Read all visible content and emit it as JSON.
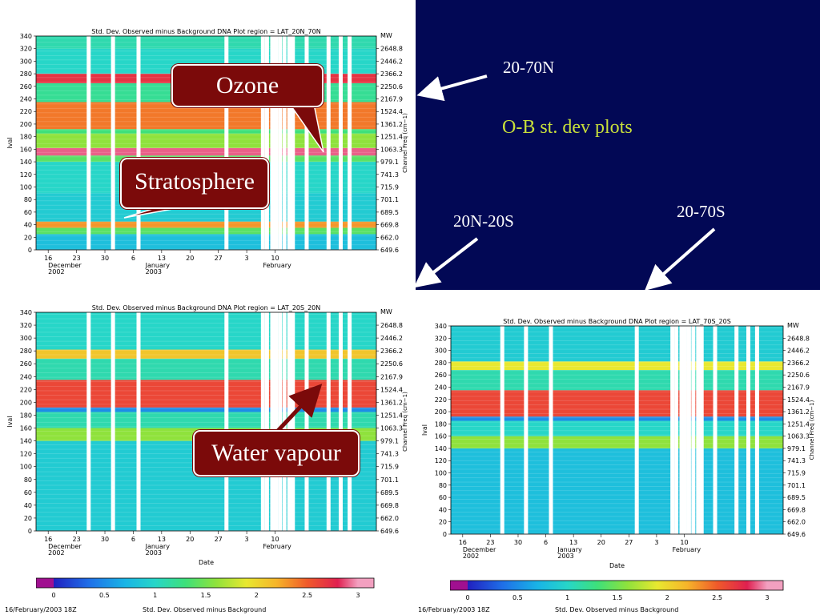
{
  "slide": {
    "title": "O-B st. dev plots",
    "labels": {
      "n": "20-70N",
      "eq": "20N-20S",
      "s": "20-70S"
    },
    "callouts": {
      "ozone": "Ozone",
      "strat": "Stratosphere",
      "wv": "Water vapour"
    },
    "colors": {
      "background": "#020855",
      "title": "#c8e03a",
      "callout": "#7b0a0a"
    }
  },
  "chart_data": [
    {
      "type": "heatmap",
      "title": "Std. Dev. Observed minus Background DNA Plot   region = LAT_20N_70N",
      "ylabel": "lval",
      "y2label": "Channel Freq (cm−1)",
      "y2unit": "MW",
      "xlabel": "",
      "ylim": [
        0,
        340
      ],
      "yticks": [
        0,
        20,
        40,
        60,
        80,
        100,
        120,
        140,
        160,
        180,
        200,
        220,
        240,
        260,
        280,
        300,
        320,
        340
      ],
      "y2ticks": [
        "649.6",
        "662.0",
        "669.8",
        "689.5",
        "701.1",
        "715.9",
        "741.3",
        "979.1",
        "1063.3",
        "1251.4",
        "1361.2",
        "1524.4",
        "2167.9",
        "2250.6",
        "2366.2",
        "2446.2",
        "2648.8"
      ],
      "xticks": [
        "16",
        "23",
        "30",
        "6",
        "13",
        "20",
        "27",
        "3",
        "10"
      ],
      "month_labels": [
        {
          "m": "December",
          "y": "2002"
        },
        {
          "m": "January",
          "y": "2003"
        },
        {
          "m": "February",
          "y": ""
        }
      ],
      "bands": [
        {
          "lo": 0,
          "hi": 25,
          "v": 0.8
        },
        {
          "lo": 25,
          "hi": 35,
          "v": 1.4
        },
        {
          "lo": 35,
          "hi": 45,
          "v": 2.3
        },
        {
          "lo": 45,
          "hi": 90,
          "v": 0.9
        },
        {
          "lo": 90,
          "hi": 140,
          "v": 1.0
        },
        {
          "lo": 140,
          "hi": 150,
          "v": 1.4
        },
        {
          "lo": 150,
          "hi": 162,
          "v": 2.9
        },
        {
          "lo": 162,
          "hi": 185,
          "v": 1.6
        },
        {
          "lo": 185,
          "hi": 192,
          "v": 1.3
        },
        {
          "lo": 192,
          "hi": 235,
          "v": 2.4
        },
        {
          "lo": 235,
          "hi": 265,
          "v": 1.2
        },
        {
          "lo": 265,
          "hi": 280,
          "v": 2.7
        },
        {
          "lo": 280,
          "hi": 320,
          "v": 1.0
        },
        {
          "lo": 320,
          "hi": 340,
          "v": 1.1
        }
      ],
      "gaps_days": [
        13,
        19,
        25.3,
        47,
        56,
        57,
        58.3,
        59.2,
        60.2,
        61.3,
        62.5,
        63.4,
        66.8,
        72.2,
        75.2,
        77.4
      ]
    },
    {
      "type": "heatmap",
      "title": "Std. Dev. Observed minus Background DNA Plot   region = LAT_20S_20N",
      "ylabel": "lval",
      "y2label": "Channel Freq (cm−1)",
      "y2unit": "MW",
      "xlabel": "Date",
      "ylim": [
        0,
        340
      ],
      "yticks": [
        0,
        20,
        40,
        60,
        80,
        100,
        120,
        140,
        160,
        180,
        200,
        220,
        240,
        260,
        280,
        300,
        320,
        340
      ],
      "y2ticks": [
        "649.6",
        "662.0",
        "669.8",
        "689.5",
        "701.1",
        "715.9",
        "741.3",
        "979.1",
        "1063.3",
        "1251.4",
        "1361.2",
        "1524.4",
        "2167.9",
        "2250.6",
        "2366.2",
        "2446.2",
        "2648.8"
      ],
      "xticks": [
        "16",
        "23",
        "30",
        "6",
        "13",
        "20",
        "27",
        "3",
        "10"
      ],
      "month_labels": [
        {
          "m": "December",
          "y": "2002"
        },
        {
          "m": "January",
          "y": "2003"
        },
        {
          "m": "February",
          "y": ""
        }
      ],
      "bands": [
        {
          "lo": 0,
          "hi": 140,
          "v": 0.9
        },
        {
          "lo": 140,
          "hi": 160,
          "v": 1.6
        },
        {
          "lo": 160,
          "hi": 185,
          "v": 1.1
        },
        {
          "lo": 185,
          "hi": 192,
          "v": 0.5
        },
        {
          "lo": 192,
          "hi": 235,
          "v": 2.6
        },
        {
          "lo": 235,
          "hi": 268,
          "v": 1.1
        },
        {
          "lo": 268,
          "hi": 282,
          "v": 2.1
        },
        {
          "lo": 282,
          "hi": 340,
          "v": 1.0
        }
      ],
      "gaps_days": [
        13,
        19,
        25.3,
        47,
        56,
        57,
        58.3,
        59.2,
        60.2,
        61.3,
        62.5,
        63.4,
        66.8,
        72.2,
        75.2,
        77.4
      ]
    },
    {
      "type": "heatmap",
      "title": "Std. Dev. Observed minus Background DNA Plot   region = LAT_70S_20S",
      "ylabel": "lval",
      "y2label": "Channel Freq (cm−1)",
      "y2unit": "MW",
      "xlabel": "Date",
      "ylim": [
        0,
        340
      ],
      "yticks": [
        0,
        20,
        40,
        60,
        80,
        100,
        120,
        140,
        160,
        180,
        200,
        220,
        240,
        260,
        280,
        300,
        320,
        340
      ],
      "y2ticks": [
        "649.6",
        "662.0",
        "669.8",
        "689.5",
        "701.1",
        "715.9",
        "741.3",
        "979.1",
        "1063.3",
        "1251.4",
        "1361.2",
        "1524.4",
        "2167.9",
        "2250.6",
        "2366.2",
        "2446.2",
        "2648.8"
      ],
      "xticks": [
        "16",
        "23",
        "30",
        "6",
        "13",
        "20",
        "27",
        "3",
        "10"
      ],
      "month_labels": [
        {
          "m": "December",
          "y": "2002"
        },
        {
          "m": "January",
          "y": "2003"
        },
        {
          "m": "February",
          "y": ""
        }
      ],
      "bands": [
        {
          "lo": 0,
          "hi": 140,
          "v": 0.8
        },
        {
          "lo": 140,
          "hi": 160,
          "v": 1.6
        },
        {
          "lo": 160,
          "hi": 185,
          "v": 1.0
        },
        {
          "lo": 185,
          "hi": 192,
          "v": 0.5
        },
        {
          "lo": 192,
          "hi": 235,
          "v": 2.6
        },
        {
          "lo": 235,
          "hi": 268,
          "v": 1.1
        },
        {
          "lo": 268,
          "hi": 282,
          "v": 1.9
        },
        {
          "lo": 282,
          "hi": 340,
          "v": 0.9
        }
      ],
      "gaps_days": [
        13,
        19,
        25.3,
        47,
        56,
        57,
        58.3,
        59.2,
        60.2,
        61.3,
        62.5,
        63.4,
        66.8,
        72.2,
        75.2,
        77.4
      ]
    }
  ],
  "colorbar": {
    "ticks": [
      "0",
      "0.5",
      "1",
      "1.5",
      "2",
      "2.5",
      "3"
    ],
    "range": [
      0,
      3
    ],
    "caption": "Std. Dev. Observed minus Background",
    "timestamp": "16/February/2003 18Z"
  }
}
